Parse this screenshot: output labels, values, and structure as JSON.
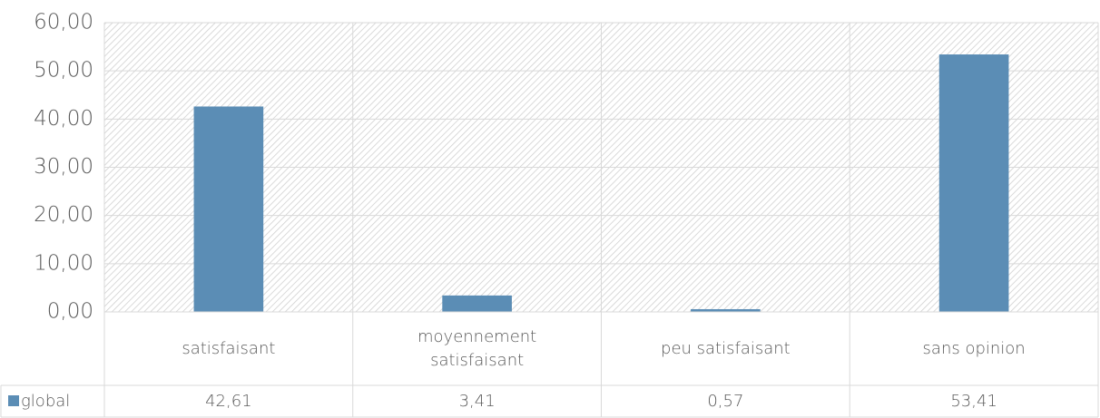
{
  "chart_data": {
    "type": "bar",
    "categories": [
      "satisfaisant",
      "moyennement satisfaisant",
      "peu satisfaisant",
      "sans opinion"
    ],
    "series": [
      {
        "name": "global",
        "color": "#5b8db5",
        "values": [
          42.61,
          3.41,
          0.57,
          53.41
        ],
        "value_labels": [
          "42,61",
          "3,41",
          "0,57",
          "53,41"
        ]
      }
    ],
    "ylim": [
      0,
      60
    ],
    "yticks": [
      {
        "value": 0,
        "label": "0,00"
      },
      {
        "value": 10,
        "label": "10,00"
      },
      {
        "value": 20,
        "label": "20,00"
      },
      {
        "value": 30,
        "label": "30,00"
      },
      {
        "value": 40,
        "label": "40,00"
      },
      {
        "value": 50,
        "label": "50,00"
      },
      {
        "value": 60,
        "label": "60,00"
      }
    ],
    "grid": true
  }
}
